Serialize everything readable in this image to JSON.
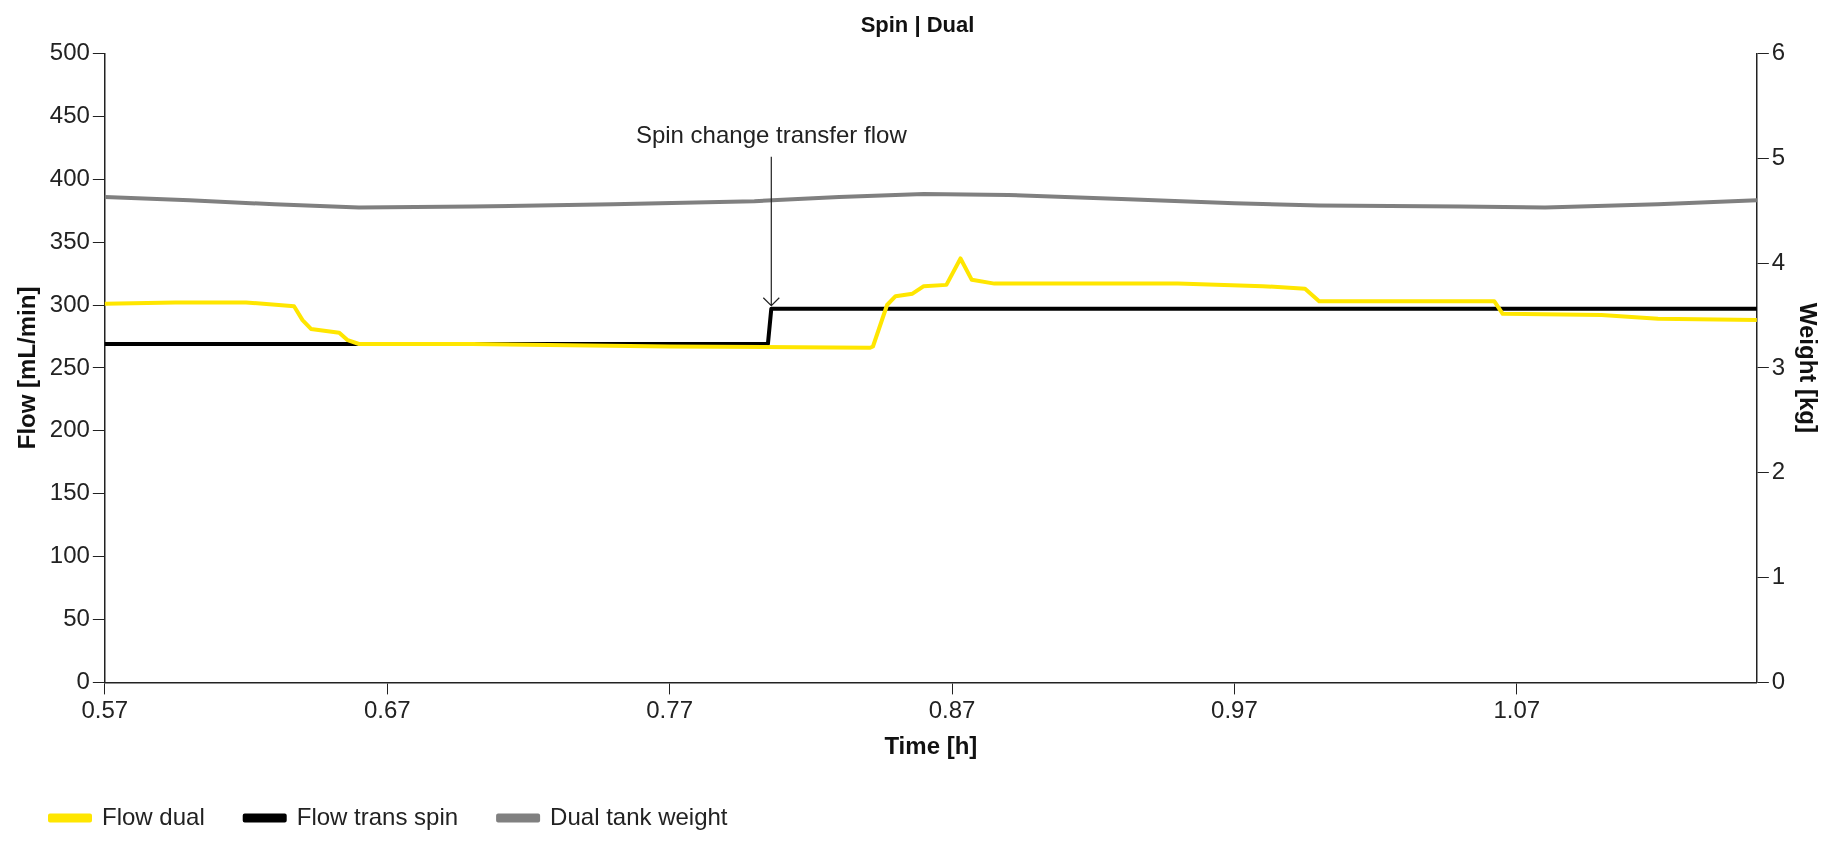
{
  "chart_data": {
    "type": "line",
    "title": "Spin | Dual",
    "xlabel": "Time [h]",
    "ylabel": "Flow [mL/min]",
    "y2label": "Weight [kg]",
    "xlim": [
      0.57,
      1.155
    ],
    "xticks": [
      0.57,
      0.67,
      0.77,
      0.87,
      0.97,
      1.07
    ],
    "ylim": [
      0,
      500
    ],
    "yticks": [
      0,
      50,
      100,
      150,
      200,
      250,
      300,
      350,
      400,
      450,
      500
    ],
    "y2lim": [
      0,
      6
    ],
    "y2ticks": [
      0,
      1,
      2,
      3,
      4,
      5,
      6
    ],
    "grid": false,
    "legend": "bottom",
    "marker": "none",
    "line_style": "solid",
    "annotations": [
      {
        "text": "Spin change transfer flow",
        "x": 0.806,
        "y": 297
      }
    ],
    "series": [
      {
        "name": "Flow dual",
        "color": "#ffe600",
        "x": [
          0.57,
          0.595,
          0.62,
          0.637,
          0.64,
          0.643,
          0.653,
          0.656,
          0.66,
          0.7,
          0.77,
          0.841,
          0.842,
          0.847,
          0.85,
          0.856,
          0.86,
          0.868,
          0.873,
          0.877,
          0.885,
          0.95,
          0.98,
          0.995,
          1.0,
          1.062,
          1.065,
          1.1,
          1.12,
          1.155
        ],
        "values": [
          301,
          302,
          302,
          299,
          288,
          281,
          278,
          272,
          269,
          269,
          267,
          266,
          267,
          300,
          307,
          309,
          315,
          316,
          337,
          320,
          317,
          317,
          315,
          313,
          303,
          303,
          293,
          292,
          289,
          288
        ]
      },
      {
        "name": "Flow trans spin",
        "color": "#000000",
        "x": [
          0.57,
          0.8048,
          0.806,
          1.155
        ],
        "values": [
          269,
          269,
          297,
          297
        ]
      },
      {
        "name": "Dual tank weight",
        "color": "#808080",
        "axis": "y2",
        "x": [
          0.57,
          0.6,
          0.63,
          0.66,
          0.7,
          0.75,
          0.8,
          0.83,
          0.86,
          0.89,
          0.93,
          0.97,
          1.0,
          1.05,
          1.08,
          1.12,
          1.155
        ],
        "values": [
          4.63,
          4.6,
          4.56,
          4.53,
          4.54,
          4.56,
          4.59,
          4.63,
          4.66,
          4.65,
          4.61,
          4.57,
          4.55,
          4.54,
          4.53,
          4.56,
          4.6
        ]
      }
    ]
  }
}
